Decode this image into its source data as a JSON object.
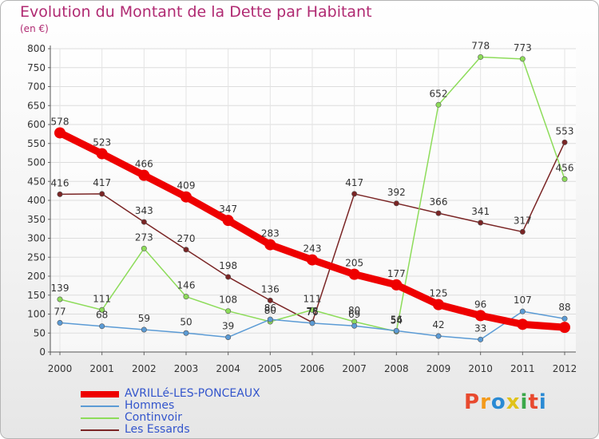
{
  "title": "Evolution du Montant de la Dette par Habitant",
  "unit": "(en €)",
  "logo": {
    "text": "Proxiti",
    "colors": [
      "#e84a2f",
      "#f39a1a",
      "#2a8ad4",
      "#e0c21a",
      "#3aa84a",
      "#e84a2f",
      "#2a8ad4"
    ]
  },
  "chart_data": {
    "type": "line",
    "title": "Evolution du Montant de la Dette par Habitant",
    "ylabel": "(en €)",
    "x": [
      "2000",
      "2001",
      "2002",
      "2003",
      "2004",
      "2005",
      "2006",
      "2007",
      "2008",
      "2009",
      "2010",
      "2011",
      "2012"
    ],
    "ylim": [
      0,
      800
    ],
    "yticks": [
      0,
      50,
      100,
      150,
      200,
      250,
      300,
      350,
      400,
      450,
      500,
      550,
      600,
      650,
      700,
      750,
      800
    ],
    "grid": true,
    "legend_position": "bottom-left",
    "series": [
      {
        "name": "AVRILLé-LES-PONCEAUX",
        "color": "#ee0000",
        "values": [
          578,
          523,
          466,
          409,
          347,
          283,
          243,
          205,
          177,
          125,
          96,
          73,
          65
        ],
        "labels": [
          "578",
          "523",
          "466",
          "409",
          "347",
          "283",
          "243",
          "205",
          "177",
          "125",
          "96",
          "",
          ""
        ]
      },
      {
        "name": "Hommes",
        "color": "#5b9bd5",
        "values": [
          77,
          68,
          59,
          50,
          39,
          86,
          76,
          69,
          56,
          42,
          33,
          107,
          88
        ],
        "labels": [
          "77",
          "68",
          "59",
          "50",
          "39",
          "86",
          "76",
          "69",
          "56",
          "42",
          "33",
          "107",
          "88"
        ]
      },
      {
        "name": "Continvoir",
        "color": "#8ddc5a",
        "values": [
          139,
          111,
          273,
          146,
          108,
          80,
          111,
          80,
          54,
          652,
          778,
          773,
          456
        ],
        "labels": [
          "139",
          "111",
          "273",
          "146",
          "108",
          "80",
          "111",
          "80",
          "54",
          "652",
          "778",
          "773",
          "456"
        ]
      },
      {
        "name": "Les Essards",
        "color": "#7a2525",
        "values": [
          416,
          417,
          343,
          270,
          198,
          136,
          78,
          417,
          392,
          366,
          341,
          317,
          553
        ],
        "labels": [
          "416",
          "417",
          "343",
          "270",
          "198",
          "136",
          "78",
          "417",
          "392",
          "366",
          "341",
          "317",
          "553"
        ]
      }
    ]
  }
}
